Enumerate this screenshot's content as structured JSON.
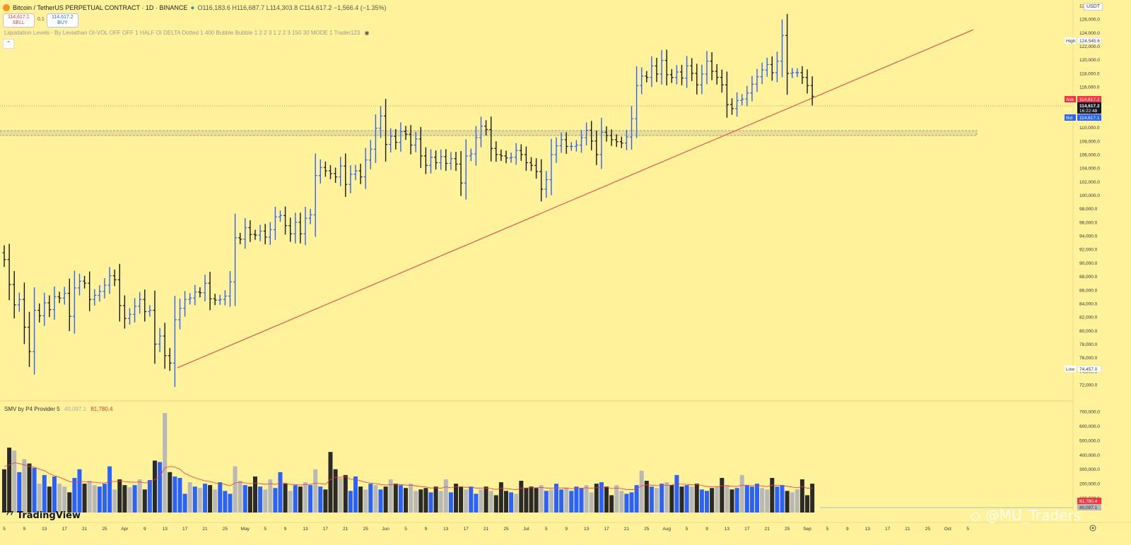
{
  "header": {
    "symbol": "Bitcoin / TetherUS PERPETUAL CONTRACT · 1D · BINANCE",
    "ohlc": "O116,183.6 H116,687.7 L114,303.8 C114,617.2 −1,566.4 (−1.35%)",
    "currency": "USDT"
  },
  "trade": {
    "sell_price": "114,617.1",
    "sell_label": "SELL",
    "spread": "0.1",
    "buy_price": "114,617.2",
    "buy_label": "BUY"
  },
  "indicator_legend": "Liquidation Levels - By Leviathan OI-VOL OFF OFF 1 HALF OI DELTA Dotted 1 400 Bubble Bubble 1 2 2 3 1 2 2 3 150 30 MODE 1 Trader123",
  "volume_legend": {
    "name": "SMV by P4 Provider 5",
    "v1": "40,097.1",
    "v2": "81,780.4"
  },
  "price_labels": {
    "high_tag": "High",
    "high_value": "124,545.6",
    "ask_tag": "Ask",
    "ask_value": "114,617.2",
    "last_value": "114,617.2",
    "countdown": "16:22:48",
    "bid_tag": "Bid",
    "bid_value": "114,617.1",
    "low_tag": "Low",
    "low_value": "74,457.0"
  },
  "volume_labels": {
    "ma_value": "81,780.4",
    "vol_value": "40,097.1"
  },
  "branding": {
    "logo": "TradingView",
    "watermark": "@MU_Traders"
  },
  "colors": {
    "background": "#FFF29A",
    "up": "#2962FF",
    "down": "#131722",
    "trend": "#F23645",
    "vol_up": "#2962FF",
    "vol_down": "#2A2A2A",
    "vol_grey": "#B8B8B8"
  },
  "chart_data": [
    {
      "type": "ohlc",
      "ylim": [
        70000,
        130000
      ],
      "y_ticks": [
        72000,
        74000,
        76000,
        78000,
        80000,
        82000,
        84000,
        86000,
        88000,
        90000,
        92000,
        94000,
        96000,
        98000,
        100000,
        102000,
        104000,
        106000,
        108000,
        110000,
        112000,
        114000,
        116000,
        118000,
        120000,
        122000,
        124000,
        126000,
        128000
      ],
      "x_tick_labels": [
        "5",
        "9",
        "13",
        "17",
        "21",
        "25",
        "Apr",
        "9",
        "13",
        "17",
        "21",
        "25",
        "May",
        "5",
        "9",
        "13",
        "17",
        "21",
        "25",
        "Jun",
        "5",
        "9",
        "13",
        "17",
        "21",
        "25",
        "Jul",
        "5",
        "9",
        "13",
        "17",
        "21",
        "25",
        "Aug",
        "5",
        "9",
        "13",
        "17",
        "21",
        "25",
        "Sep",
        "5",
        "9",
        "13",
        "17",
        "21",
        "25",
        "Oct",
        "5"
      ],
      "close": [
        90500,
        86800,
        83800,
        84600,
        80500,
        76900,
        83000,
        82200,
        84100,
        83100,
        85000,
        84800,
        85500,
        82100,
        86300,
        87300,
        87000,
        84600,
        85200,
        85800,
        86700,
        88100,
        87500,
        83700,
        81800,
        82400,
        83600,
        84600,
        82800,
        83000,
        78000,
        79200,
        76300,
        75200,
        81600,
        83300,
        84600,
        84800,
        85700,
        85600,
        87000,
        84700,
        84500,
        84600,
        85100,
        87200,
        93700,
        93500,
        95200,
        94200,
        94100,
        94700,
        93800,
        94900,
        96800,
        97000,
        95500,
        94300,
        96000,
        94300,
        96600,
        97100,
        102900,
        104100,
        103600,
        103200,
        102700,
        104300,
        101600,
        103100,
        103600,
        102700,
        105200,
        106800,
        109900,
        111700,
        107500,
        108700,
        107800,
        109400,
        109000,
        107400,
        108300,
        105800,
        104400,
        105600,
        104800,
        105700,
        104700,
        105400,
        104600,
        101800,
        105800,
        106100,
        108500,
        110200,
        109700,
        106900,
        106000,
        105800,
        105500,
        105600,
        106600,
        106000,
        104800,
        104400,
        103500,
        100900,
        102300,
        106000,
        107300,
        108200,
        107200,
        107200,
        107400,
        108500,
        109600,
        108000,
        106000,
        109300,
        108800,
        108200,
        107900,
        107700,
        108600,
        111300,
        116200,
        117600,
        117400,
        119100,
        117900,
        119900,
        117800,
        117400,
        118200,
        117300,
        119100,
        118000,
        116300,
        117900,
        119800,
        118300,
        117400,
        116300,
        113400,
        112800,
        114000,
        114200,
        115100,
        116400,
        117500,
        118500,
        119300,
        118100,
        119800,
        123600,
        118000,
        118100,
        118100,
        117400,
        116200,
        114617
      ]
    },
    {
      "type": "bar",
      "name": "volume",
      "ylim": [
        0,
        750000
      ],
      "y_ticks": [
        100000,
        200000,
        300000,
        400000,
        500000,
        600000,
        700000
      ],
      "values": [
        300000,
        450000,
        430000,
        280000,
        370000,
        340000,
        310000,
        200000,
        260000,
        180000,
        250000,
        200000,
        180000,
        140000,
        240000,
        300000,
        200000,
        220000,
        190000,
        180000,
        200000,
        320000,
        160000,
        230000,
        190000,
        175000,
        190000,
        230000,
        160000,
        225000,
        360000,
        350000,
        690000,
        280000,
        250000,
        240000,
        130000,
        210000,
        180000,
        170000,
        200000,
        190000,
        160000,
        210000,
        150000,
        130000,
        320000,
        220000,
        190000,
        180000,
        250000,
        180000,
        160000,
        230000,
        170000,
        280000,
        200000,
        150000,
        190000,
        180000,
        210000,
        190000,
        300000,
        180000,
        160000,
        420000,
        300000,
        240000,
        260000,
        150000,
        250000,
        180000,
        160000,
        200000,
        190000,
        160000,
        180000,
        230000,
        200000,
        190000,
        170000,
        200000,
        150000,
        160000,
        170000,
        140000,
        180000,
        150000,
        230000,
        140000,
        200000,
        180000,
        160000,
        180000,
        130000,
        160000,
        180000,
        150000,
        120000,
        210000,
        150000,
        140000,
        130000,
        220000,
        170000,
        180000,
        170000,
        190000,
        150000,
        160000,
        200000,
        160000,
        170000,
        150000,
        180000,
        170000,
        190000,
        140000,
        200000,
        210000,
        180000,
        120000,
        190000,
        150000,
        130000,
        140000,
        190000,
        290000,
        220000,
        180000,
        170000,
        200000,
        210000,
        190000,
        260000,
        180000,
        190000,
        180000,
        200000,
        160000,
        150000,
        170000,
        180000,
        240000,
        190000,
        160000,
        170000,
        260000,
        190000,
        180000,
        200000,
        170000,
        160000,
        240000,
        180000,
        190000,
        150000,
        140000,
        160000,
        230000,
        120000,
        200000
      ],
      "ma": [
        320000,
        330000,
        345000,
        340000,
        330000,
        320000,
        315000,
        300000,
        290000,
        270000,
        255000,
        245000,
        230000,
        215000,
        210000,
        215000,
        215000,
        212000,
        210000,
        205000,
        205000,
        215000,
        215000,
        218000,
        215000,
        212000,
        210000,
        212000,
        205000,
        210000,
        230000,
        250000,
        310000,
        320000,
        315000,
        300000,
        270000,
        255000,
        240000,
        230000,
        220000,
        215000,
        205000,
        200000,
        195000,
        185000,
        205000,
        210000,
        205000,
        200000,
        205000,
        200000,
        195000,
        200000,
        195000,
        205000,
        205000,
        195000,
        195000,
        190000,
        195000,
        195000,
        205000,
        200000,
        195000,
        230000,
        245000,
        245000,
        250000,
        230000,
        230000,
        220000,
        210000,
        205000,
        200000,
        195000,
        190000,
        195000,
        195000,
        195000,
        190000,
        190000,
        185000,
        180000,
        178000,
        170000,
        172000,
        168000,
        178000,
        172000,
        178000,
        178000,
        175000,
        176000,
        170000,
        168000,
        170000,
        166000,
        160000,
        168000,
        166000,
        162000,
        158000,
        170000,
        170000,
        172000,
        172000,
        175000,
        170000,
        168000,
        172000,
        170000,
        170000,
        166000,
        168000,
        168000,
        172000,
        168000,
        172000,
        176000,
        176000,
        166000,
        170000,
        166000,
        160000,
        158000,
        164000,
        185000,
        192000,
        190000,
        186000,
        188000,
        190000,
        190000,
        200000,
        196000,
        196000,
        192000,
        194000,
        188000,
        180000,
        178000,
        178000,
        186000,
        186000,
        182000,
        180000,
        190000,
        188000,
        186000,
        188000,
        184000,
        180000,
        190000,
        188000,
        188000,
        182000,
        176000,
        172000,
        180000,
        168000,
        170000
      ]
    }
  ]
}
